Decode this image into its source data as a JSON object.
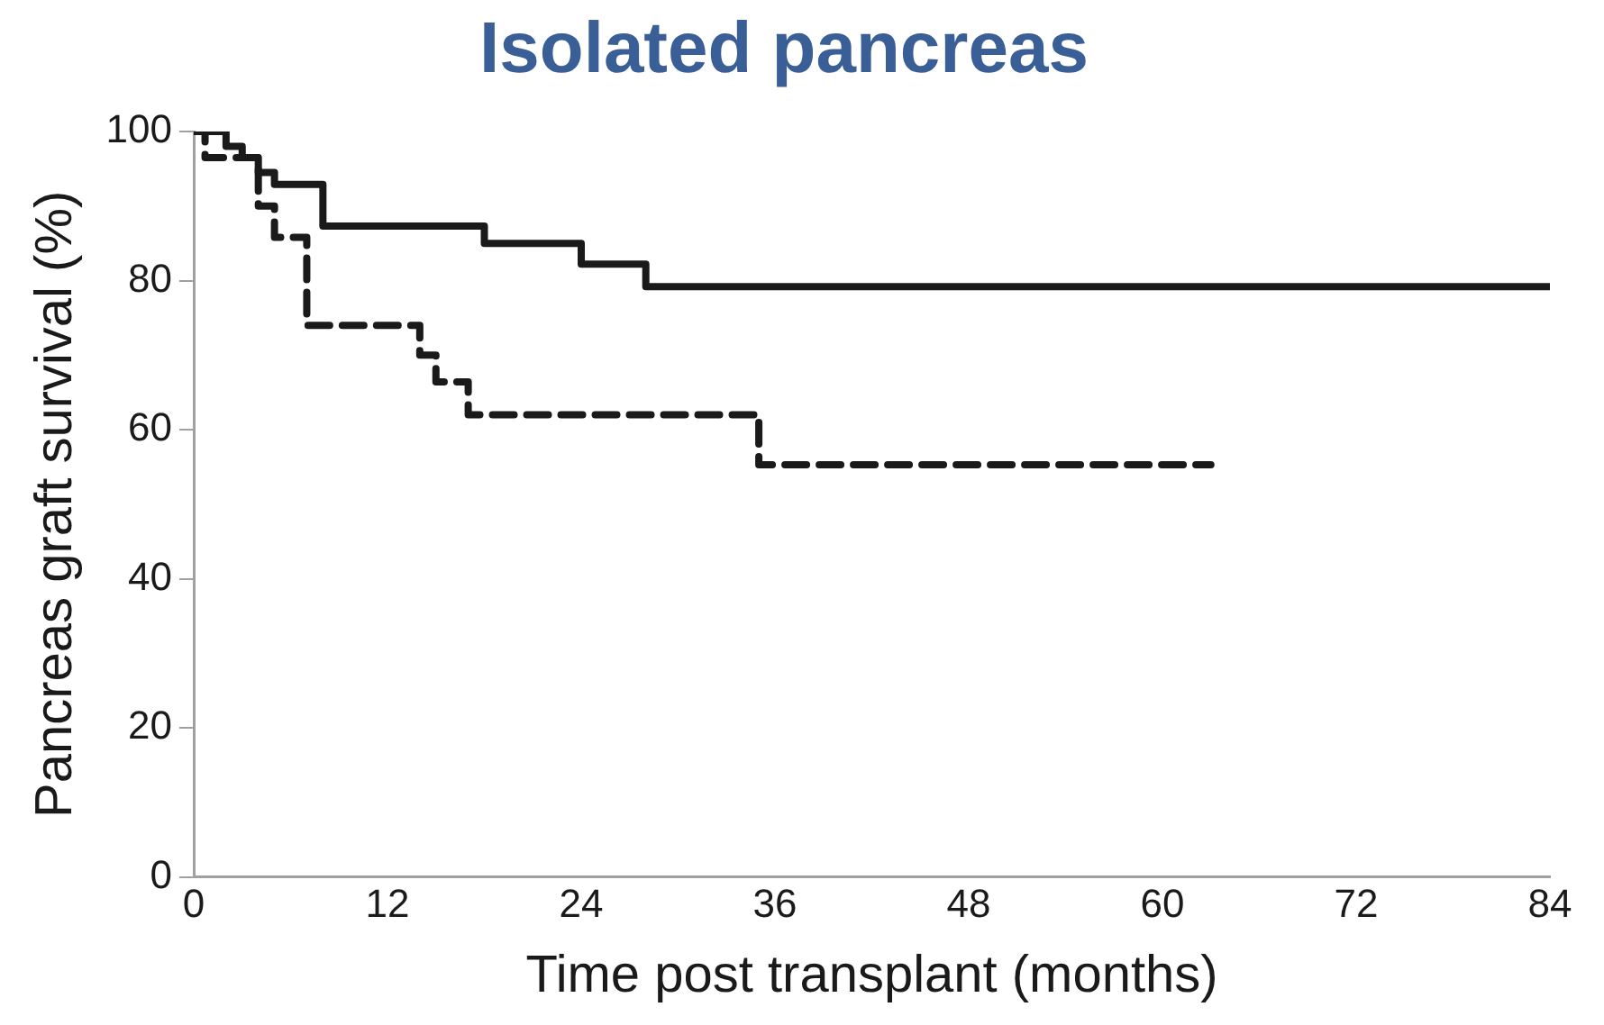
{
  "chart_data": {
    "type": "step",
    "title": "Isolated pancreas",
    "xlabel": "Time post transplant (months)",
    "ylabel": "Pancreas graft survival (%)",
    "xlim": [
      0,
      84
    ],
    "xticks": [
      0,
      12,
      24,
      36,
      48,
      60,
      72,
      84
    ],
    "ylim": [
      0,
      100
    ],
    "yticks": [
      0,
      20,
      40,
      60,
      80,
      100
    ],
    "grid": false,
    "legend": false,
    "marker": "none",
    "series": [
      {
        "color": "#1a1a1a",
        "line_style": "solid",
        "x": [
          0,
          2,
          3,
          4,
          5,
          8,
          18,
          24,
          28,
          84
        ],
        "values": [
          100,
          98,
          96.5,
          94.5,
          92.9,
          87.3,
          85,
          82.2,
          79.2,
          79.2
        ]
      },
      {
        "color": "#1a1a1a",
        "line_style": "dashed",
        "x": [
          0,
          0.7,
          4,
          5,
          7,
          14,
          15,
          17,
          35,
          63
        ],
        "values": [
          100,
          96.5,
          90,
          85.8,
          74,
          70,
          66.4,
          62,
          55.3,
          55.3
        ]
      }
    ]
  }
}
